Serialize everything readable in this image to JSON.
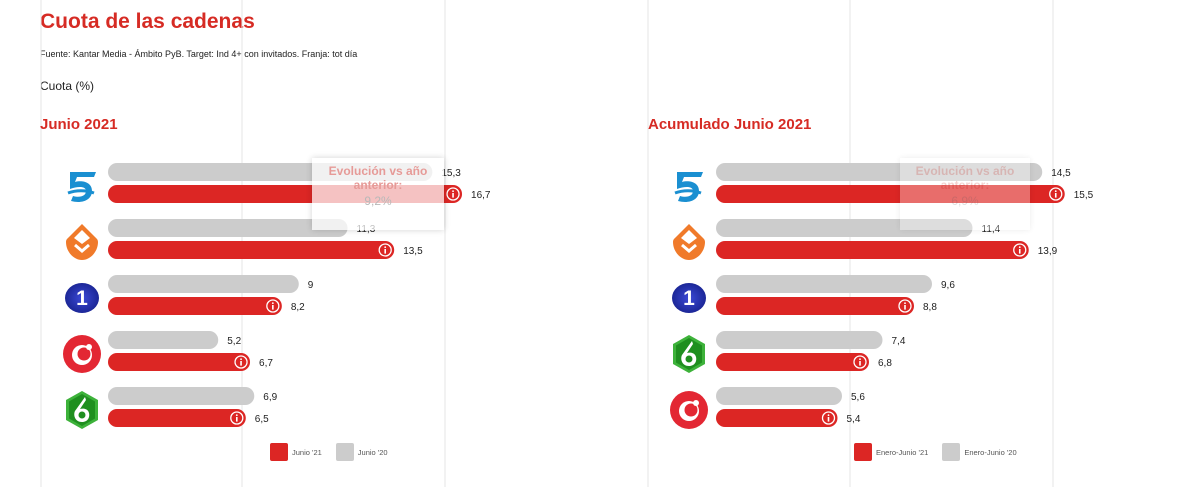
{
  "header": {
    "title": "Cuota de las cadenas",
    "source": "Fuente: Kantar Media - Ámbito PyB. Target: Ind 4+ con invitados. Franja: tot día",
    "metric": "Cuota (%)"
  },
  "colors": {
    "current": "#dc2624",
    "previous": "#cccccc",
    "title": "#d62b24",
    "info_icon": "info-icon"
  },
  "chart_data": [
    {
      "type": "bar",
      "orientation": "horizontal",
      "title": "Junio 2021",
      "xlim": [
        0,
        20
      ],
      "grid": true,
      "legend_position": "bottom-right",
      "categories": [
        "telecinco-logo",
        "antena3-logo",
        "la1-logo",
        "cuatro-logo",
        "lasexta-logo"
      ],
      "series": [
        {
          "name": "Junio '21",
          "color": "#dc2624",
          "values": [
            16.7,
            13.5,
            8.2,
            6.7,
            6.5
          ],
          "labels": [
            "16,7",
            "13,5",
            "8,2",
            "6,7",
            "6,5"
          ]
        },
        {
          "name": "Junio '20",
          "color": "#cccccc",
          "values": [
            15.3,
            11.3,
            9,
            5.2,
            6.9
          ],
          "labels": [
            "15,3",
            "11,3",
            "9",
            "5,2",
            "6,9"
          ]
        }
      ],
      "tooltip": {
        "title": "Evolución vs año anterior:",
        "value": "9,2%"
      }
    },
    {
      "type": "bar",
      "orientation": "horizontal",
      "title": "Acumulado Junio 2021",
      "xlim": [
        0,
        20
      ],
      "grid": true,
      "legend_position": "bottom-right",
      "categories": [
        "telecinco-logo",
        "antena3-logo",
        "la1-logo",
        "lasexta-logo",
        "cuatro-logo"
      ],
      "series": [
        {
          "name": "Enero-Junio '21",
          "color": "#dc2624",
          "values": [
            15.5,
            13.9,
            8.8,
            6.8,
            5.4
          ],
          "labels": [
            "15,5",
            "13,9",
            "8,8",
            "6,8",
            "5,4"
          ]
        },
        {
          "name": "Enero-Junio '20",
          "color": "#cccccc",
          "values": [
            14.5,
            11.4,
            9.6,
            7.4,
            5.6
          ],
          "labels": [
            "14,5",
            "11,4",
            "9,6",
            "7,4",
            "5,6"
          ]
        }
      ],
      "tooltip": {
        "title": "Evolución vs año anterior:",
        "value": "6,9%"
      }
    }
  ]
}
